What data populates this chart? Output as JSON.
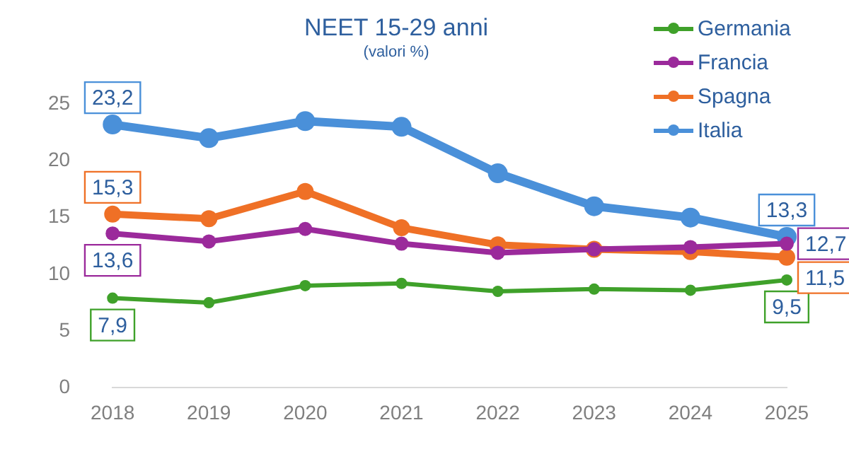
{
  "chart_data": {
    "type": "line",
    "title": "NEET 15-29 anni",
    "subtitle": "(valori %)",
    "categories": [
      "2018",
      "2019",
      "2020",
      "2021",
      "2022",
      "2023",
      "2024",
      "2025"
    ],
    "series": [
      {
        "name": "Germania",
        "color": "#3fa12a",
        "values": [
          7.9,
          7.5,
          9.0,
          9.2,
          8.5,
          8.7,
          8.6,
          9.5
        ],
        "value_labels": [
          "7,9",
          null,
          null,
          null,
          null,
          null,
          null,
          "9,5"
        ]
      },
      {
        "name": "Francia",
        "color": "#9b2a9b",
        "values": [
          13.6,
          12.9,
          14.0,
          12.7,
          11.9,
          12.2,
          12.4,
          12.7
        ],
        "value_labels": [
          "13,6",
          null,
          null,
          null,
          null,
          null,
          null,
          "12,7"
        ]
      },
      {
        "name": "Spagna",
        "color": "#ef7026",
        "values": [
          15.3,
          14.9,
          17.3,
          14.1,
          12.6,
          12.2,
          12.0,
          11.5
        ],
        "value_labels": [
          "15,3",
          null,
          null,
          null,
          null,
          null,
          null,
          "11,5"
        ]
      },
      {
        "name": "Italia",
        "color": "#4a90d9",
        "values": [
          23.2,
          22.0,
          23.5,
          23.0,
          18.9,
          16.0,
          15.0,
          13.3
        ],
        "value_labels": [
          "23,2",
          null,
          null,
          null,
          null,
          null,
          null,
          "13,3"
        ]
      }
    ],
    "ylim": [
      0,
      25
    ],
    "yticks": [
      0,
      5,
      10,
      15,
      20,
      25
    ],
    "grid": false,
    "legend": "top right",
    "marker": "circle",
    "line_style": "solid"
  }
}
